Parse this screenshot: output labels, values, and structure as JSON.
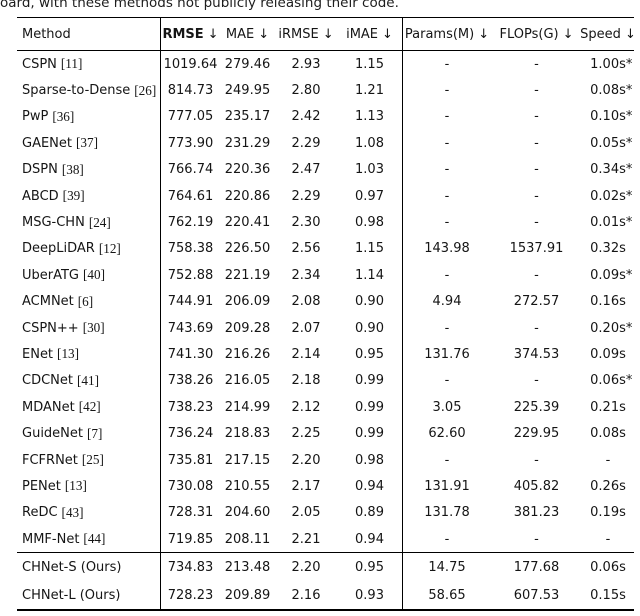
{
  "caption_fragment": "oard, with these methods not publicly releasing their code.",
  "table": {
    "headers": {
      "method": "Method",
      "rmse": "RMSE",
      "mae": "MAE",
      "irmse": "iRMSE",
      "imae": "iMAE",
      "params": "Params(M)",
      "flops": "FLOPs(G)",
      "speed": "Speed",
      "down_arrow": "↓"
    },
    "rows": [
      {
        "method": "CSPN",
        "cite": "[11]",
        "rmse": "1019.64",
        "mae": "279.46",
        "irmse": "2.93",
        "imae": "1.15",
        "params": "-",
        "flops": "-",
        "speed": "1.00s",
        "speed_star": "*"
      },
      {
        "method": "Sparse-to-Dense",
        "cite": "[26]",
        "rmse": "814.73",
        "mae": "249.95",
        "irmse": "2.80",
        "imae": "1.21",
        "params": "-",
        "flops": "-",
        "speed": "0.08s",
        "speed_star": "*"
      },
      {
        "method": "PwP",
        "cite": "[36]",
        "rmse": "777.05",
        "mae": "235.17",
        "irmse": "2.42",
        "imae": "1.13",
        "params": "-",
        "flops": "-",
        "speed": "0.10s",
        "speed_star": "*"
      },
      {
        "method": "GAENet",
        "cite": "[37]",
        "rmse": "773.90",
        "mae": "231.29",
        "irmse": "2.29",
        "imae": "1.08",
        "params": "-",
        "flops": "-",
        "speed": "0.05s",
        "speed_star": "*"
      },
      {
        "method": "DSPN",
        "cite": "[38]",
        "rmse": "766.74",
        "mae": "220.36",
        "irmse": "2.47",
        "imae": "1.03",
        "params": "-",
        "flops": "-",
        "speed": "0.34s",
        "speed_star": "*"
      },
      {
        "method": "ABCD",
        "cite": "[39]",
        "rmse": "764.61",
        "mae": "220.86",
        "irmse": "2.29",
        "imae": "0.97",
        "params": "-",
        "flops": "-",
        "speed": "0.02s",
        "speed_star": "*"
      },
      {
        "method": "MSG-CHN",
        "cite": "[24]",
        "rmse": "762.19",
        "mae": "220.41",
        "irmse": "2.30",
        "imae": "0.98",
        "params": "-",
        "flops": "-",
        "speed": "0.01s",
        "speed_star": "*"
      },
      {
        "method": "DeepLiDAR",
        "cite": "[12]",
        "rmse": "758.38",
        "mae": "226.50",
        "irmse": "2.56",
        "imae": "1.15",
        "params": "143.98",
        "flops": "1537.91",
        "speed": "0.32s",
        "speed_star": ""
      },
      {
        "method": "UberATG",
        "cite": "[40]",
        "rmse": "752.88",
        "mae": "221.19",
        "irmse": "2.34",
        "imae": "1.14",
        "params": "-",
        "flops": "-",
        "speed": "0.09s",
        "speed_star": "*"
      },
      {
        "method": "ACMNet",
        "cite": "[6]",
        "rmse": "744.91",
        "mae": "206.09",
        "irmse": "2.08",
        "imae": "0.90",
        "params": "4.94",
        "flops": "272.57",
        "speed": "0.16s",
        "speed_star": ""
      },
      {
        "method": "CSPN++",
        "cite": "[30]",
        "rmse": "743.69",
        "mae": "209.28",
        "irmse": "2.07",
        "imae": "0.90",
        "params": "-",
        "flops": "-",
        "speed": "0.20s",
        "speed_star": "*"
      },
      {
        "method": "ENet",
        "cite": "[13]",
        "rmse": "741.30",
        "mae": "216.26",
        "irmse": "2.14",
        "imae": "0.95",
        "params": "131.76",
        "flops": "374.53",
        "speed": "0.09s",
        "speed_star": ""
      },
      {
        "method": "CDCNet",
        "cite": "[41]",
        "rmse": "738.26",
        "mae": "216.05",
        "irmse": "2.18",
        "imae": "0.99",
        "params": "-",
        "flops": "-",
        "speed": "0.06s",
        "speed_star": "*"
      },
      {
        "method": "MDANet",
        "cite": "[42]",
        "rmse": "738.23",
        "mae": "214.99",
        "irmse": "2.12",
        "imae": "0.99",
        "params": "3.05",
        "flops": "225.39",
        "speed": "0.21s",
        "speed_star": ""
      },
      {
        "method": "GuideNet",
        "cite": "[7]",
        "rmse": "736.24",
        "mae": "218.83",
        "irmse": "2.25",
        "imae": "0.99",
        "params": "62.60",
        "flops": "229.95",
        "speed": "0.08s",
        "speed_star": ""
      },
      {
        "method": "FCFRNet",
        "cite": "[25]",
        "rmse": "735.81",
        "mae": "217.15",
        "irmse": "2.20",
        "imae": "0.98",
        "params": "-",
        "flops": "-",
        "speed": "-",
        "speed_star": ""
      },
      {
        "method": "PENet",
        "cite": "[13]",
        "rmse": "730.08",
        "mae": "210.55",
        "irmse": "2.17",
        "imae": "0.94",
        "params": "131.91",
        "flops": "405.82",
        "speed": "0.26s",
        "speed_star": ""
      },
      {
        "method": "ReDC",
        "cite": "[43]",
        "rmse": "728.31",
        "mae": "204.60",
        "irmse": "2.05",
        "imae": "0.89",
        "params": "131.78",
        "flops": "381.23",
        "speed": "0.19s",
        "speed_star": ""
      },
      {
        "method": "MMF-Net",
        "cite": "[44]",
        "rmse": "719.85",
        "mae": "208.11",
        "irmse": "2.21",
        "imae": "0.94",
        "params": "-",
        "flops": "-",
        "speed": "-",
        "speed_star": ""
      }
    ],
    "ours_rows": [
      {
        "method": "CHNet-S (Ours)",
        "cite": "",
        "rmse": "734.83",
        "mae": "213.48",
        "irmse": "2.20",
        "imae": "0.95",
        "params": "14.75",
        "flops": "177.68",
        "speed": "0.06s",
        "speed_star": ""
      },
      {
        "method": "CHNet-L (Ours)",
        "cite": "",
        "rmse": "728.23",
        "mae": "209.89",
        "irmse": "2.16",
        "imae": "0.93",
        "params": "58.65",
        "flops": "607.53",
        "speed": "0.15s",
        "speed_star": ""
      }
    ]
  }
}
